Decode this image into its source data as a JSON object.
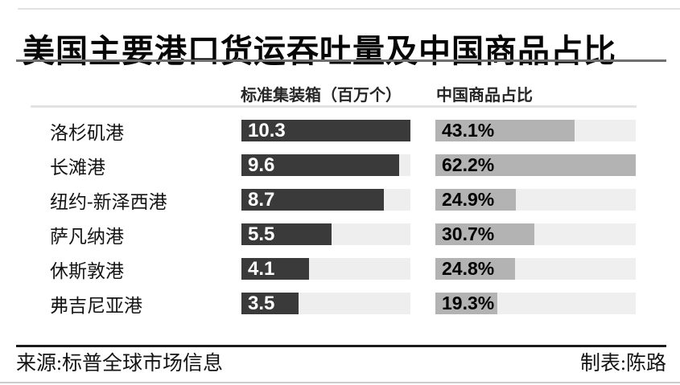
{
  "chart_data": {
    "type": "bar",
    "orientation": "horizontal",
    "title": "美国主要港口货运吞吐量及中国商品占比",
    "categories": [
      "洛杉矶港",
      "长滩港",
      "纽约-新泽西港",
      "萨凡纳港",
      "休斯敦港",
      "弗吉尼亚港"
    ],
    "series": [
      {
        "name": "标准集装箱（百万个）",
        "values": [
          10.3,
          9.6,
          8.7,
          5.5,
          4.1,
          3.5
        ],
        "unit": "",
        "axis_max": 10.3,
        "bar_color": "#3a3a3a",
        "track_color": "#eeeeee",
        "value_color": "#ffffff"
      },
      {
        "name": "中国商品占比",
        "values": [
          43.1,
          62.2,
          24.9,
          30.7,
          24.8,
          19.3
        ],
        "unit": "%",
        "axis_max": 62.2,
        "bar_color": "#b3b3b3",
        "track_color": "#efefef",
        "value_color": "#000000"
      }
    ],
    "value_labels": "inside-bar-left",
    "legend_position": "none",
    "grid": false
  },
  "footer": {
    "source": "来源:标普全球市场信息",
    "credit": "制表:陈路"
  }
}
